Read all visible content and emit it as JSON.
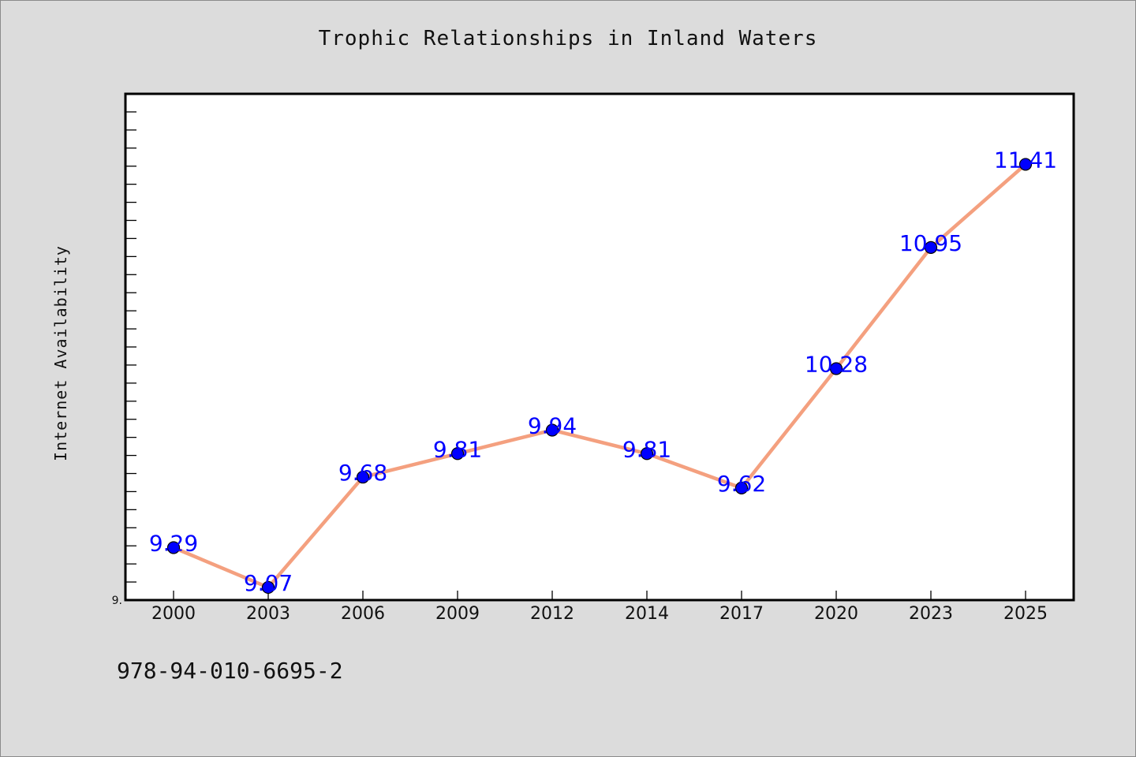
{
  "chart_data": {
    "type": "line",
    "title": "Trophic Relationships in Inland Waters",
    "xlabel": "",
    "ylabel": "Internet Availability",
    "categories": [
      "2000",
      "2003",
      "2006",
      "2009",
      "2012",
      "2014",
      "2017",
      "2020",
      "2023",
      "2025"
    ],
    "series": [
      {
        "values": [
          9.29,
          9.07,
          9.68,
          9.81,
          9.94,
          9.81,
          9.62,
          10.28,
          10.95,
          11.41
        ]
      }
    ],
    "data_labels": [
      "9.29",
      "9.07",
      "9.68",
      "9.81",
      "9.94",
      "9.81",
      "9.62",
      "10.28",
      "10.95",
      "11.41"
    ],
    "y_tick_label": "9.",
    "ylim": [
      9.0,
      11.8
    ],
    "grid": false,
    "legend": "none",
    "colors": {
      "line": "#f4a07f",
      "marker_fill": "#0000ff",
      "marker_stroke": "#000000",
      "data_label": "#0000ff",
      "plot_background": "#ffffff",
      "page_background": "#dcdcdc"
    }
  },
  "footer": {
    "code": "978-94-010-6695-2"
  }
}
